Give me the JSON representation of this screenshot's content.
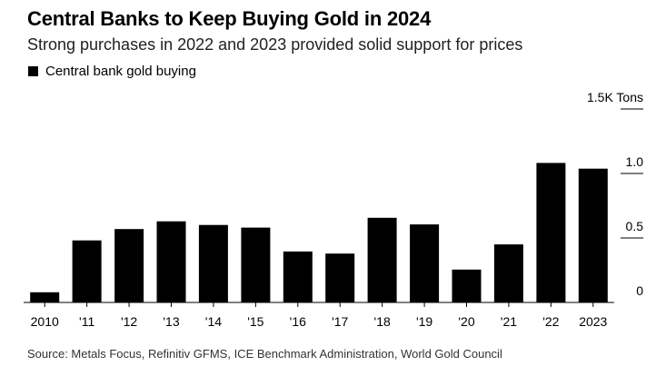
{
  "chart_data": {
    "type": "bar",
    "title": "Central Banks to Keep Buying Gold in 2024",
    "subtitle": "Strong purchases in 2022 and 2023 provided solid support for prices",
    "categories": [
      "2010",
      "'11",
      "'12",
      "'13",
      "'14",
      "'15",
      "'16",
      "'17",
      "'18",
      "'19",
      "'20",
      "'21",
      "'22",
      "'23"
    ],
    "category_labels": [
      "2010",
      "'11",
      "'12",
      "'13",
      "'14",
      "'15",
      "'16",
      "'17",
      "'18",
      "'19",
      "'20",
      "'21",
      "'22",
      "2023"
    ],
    "series": [
      {
        "name": "Central bank gold buying",
        "values": [
          79,
          481,
          569,
          629,
          601,
          580,
          395,
          379,
          656,
          605,
          255,
          450,
          1082,
          1037
        ],
        "color": "#000000"
      }
    ],
    "ylim": [
      0,
      1500
    ],
    "yticks": [
      {
        "value": 0,
        "label": "0"
      },
      {
        "value": 500,
        "label": "0.5"
      },
      {
        "value": 1000,
        "label": "1.0"
      },
      {
        "value": 1500,
        "label": "1.5K Tons"
      }
    ],
    "grid": false,
    "y_axis_side": "right",
    "legend_position": "top-left",
    "source": "Source: Metals Focus, Refinitiv GFMS, ICE Benchmark Administration, World Gold Council"
  }
}
